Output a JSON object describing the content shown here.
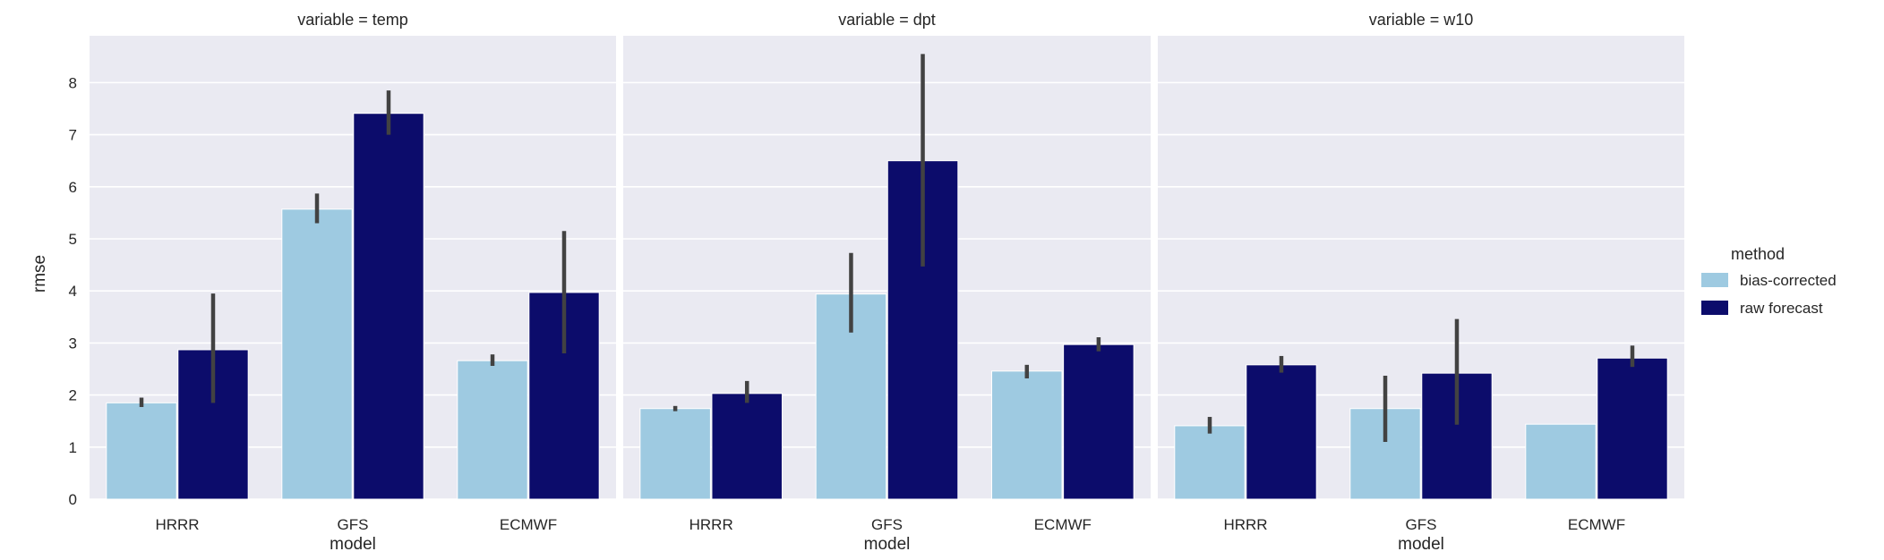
{
  "chart_data": {
    "type": "bar",
    "facet_title_prefix": "variable = ",
    "categories": [
      "HRRR",
      "GFS",
      "ECMWF"
    ],
    "xlabel": "model",
    "ylabel": "rmse",
    "ylim": [
      0,
      8.9
    ],
    "yticks": [
      0,
      1,
      2,
      3,
      4,
      5,
      6,
      7,
      8
    ],
    "grid": true,
    "legend": {
      "title": "method",
      "placement": "right",
      "entries": [
        "bias-corrected",
        "raw forecast"
      ]
    },
    "colors": {
      "bias-corrected": "#9ecae1",
      "raw forecast": "#0c0c6b"
    },
    "facets": [
      {
        "title": "variable = temp",
        "series": [
          {
            "name": "bias-corrected",
            "values": [
              1.85,
              5.57,
              2.66
            ],
            "ci_low": [
              1.77,
              5.3,
              2.56
            ],
            "ci_high": [
              1.95,
              5.87,
              2.78
            ]
          },
          {
            "name": "raw forecast",
            "values": [
              2.87,
              7.41,
              3.97
            ],
            "ci_low": [
              1.85,
              7.0,
              2.8
            ],
            "ci_high": [
              3.95,
              7.85,
              5.15
            ]
          }
        ]
      },
      {
        "title": "variable = dpt",
        "series": [
          {
            "name": "bias-corrected",
            "values": [
              1.74,
              3.94,
              2.46
            ],
            "ci_low": [
              1.69,
              3.2,
              2.32
            ],
            "ci_high": [
              1.79,
              4.73,
              2.58
            ]
          },
          {
            "name": "raw forecast",
            "values": [
              2.03,
              6.5,
              2.97
            ],
            "ci_low": [
              1.85,
              4.47,
              2.84
            ],
            "ci_high": [
              2.27,
              8.55,
              3.11
            ]
          }
        ]
      },
      {
        "title": "variable = w10",
        "series": [
          {
            "name": "bias-corrected",
            "values": [
              1.41,
              1.74,
              1.44
            ],
            "ci_low": [
              1.26,
              1.1,
              1.44
            ],
            "ci_high": [
              1.58,
              2.37,
              1.44
            ]
          },
          {
            "name": "raw forecast",
            "values": [
              2.58,
              2.42,
              2.71
            ],
            "ci_low": [
              2.43,
              1.43,
              2.54
            ],
            "ci_high": [
              2.75,
              3.46,
              2.95
            ]
          }
        ]
      }
    ]
  }
}
